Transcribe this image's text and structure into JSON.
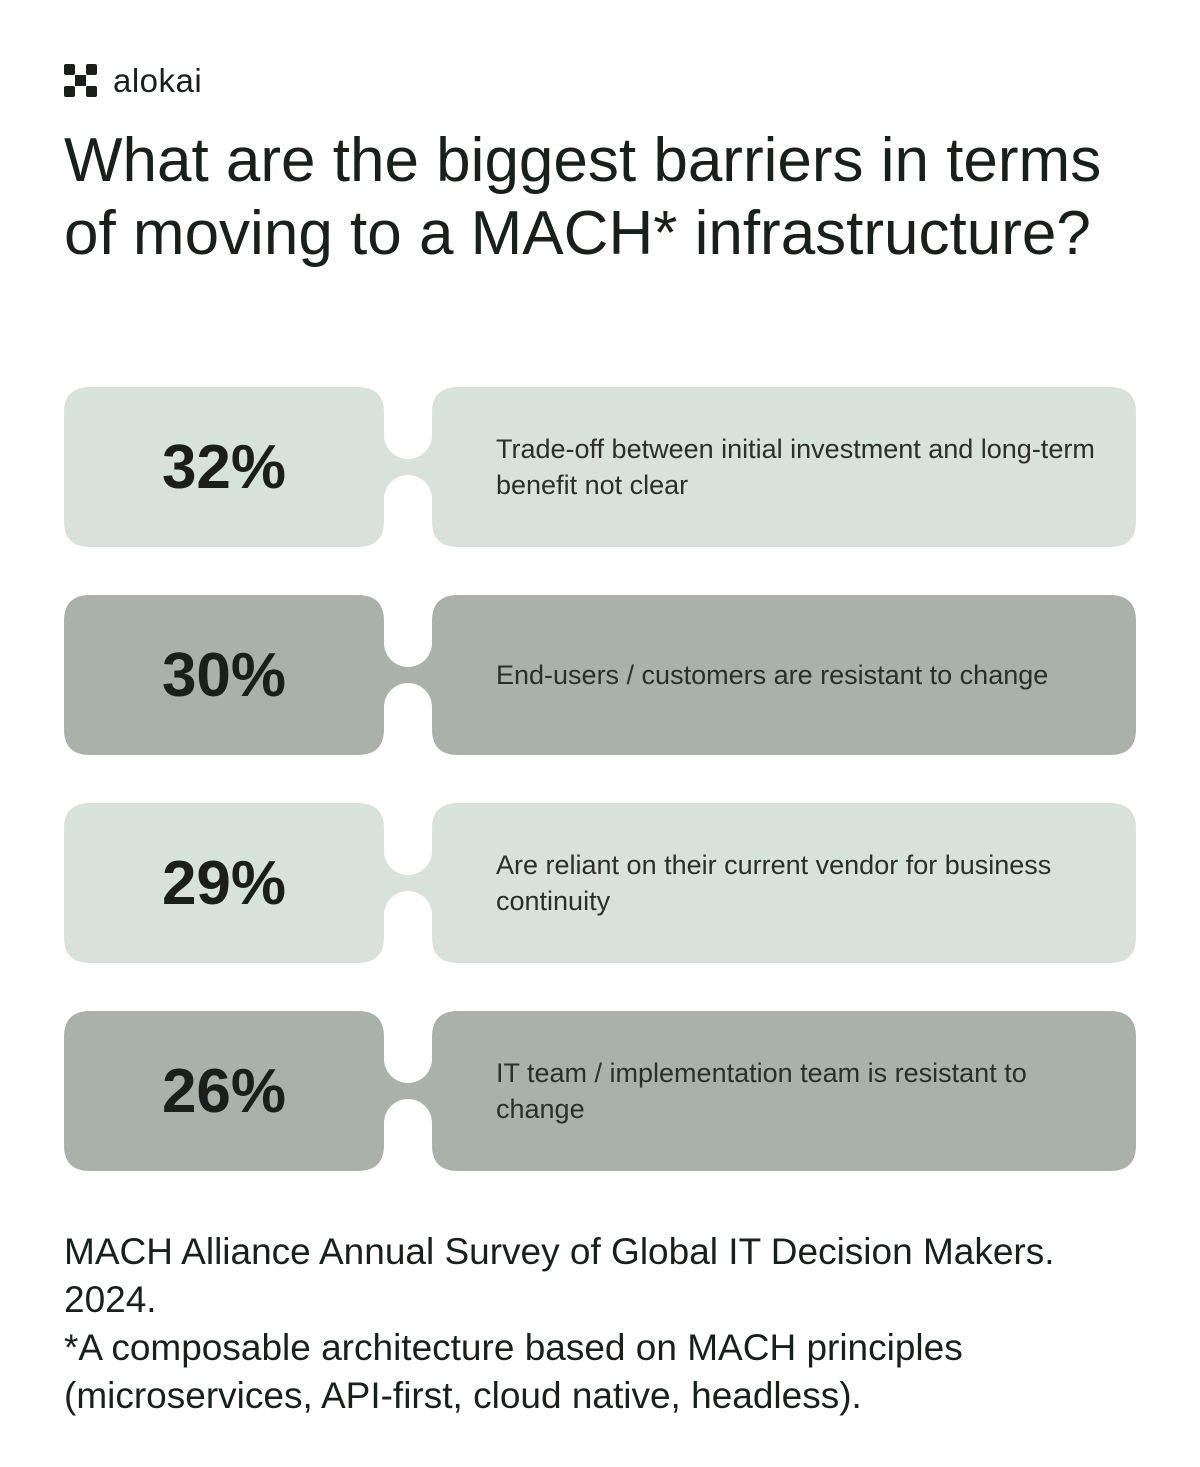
{
  "brand": {
    "name": "alokai",
    "logo_icon": "alokai-logo-icon"
  },
  "title": "What are the biggest barriers in terms of moving to a MACH* infrastructure?",
  "colors": {
    "light": "#d9e1dc",
    "dark": "#a9b1aa",
    "text": "#1a1f1c"
  },
  "barriers": [
    {
      "percent": "32%",
      "label": "Trade-off between initial investment and long-term benefit not clear",
      "tone": "light"
    },
    {
      "percent": "30%",
      "label": "End-users / customers are resistant to change",
      "tone": "dark"
    },
    {
      "percent": "29%",
      "label": "Are reliant on their current vendor for business continuity",
      "tone": "light"
    },
    {
      "percent": "26%",
      "label": "IT team / implementation team is resistant to change",
      "tone": "dark"
    }
  ],
  "footer": {
    "source": "MACH Alliance Annual Survey of Global IT Decision Makers. 2024.",
    "note": "*A composable architecture based on MACH principles (microservices, API-first, cloud native, headless)."
  }
}
